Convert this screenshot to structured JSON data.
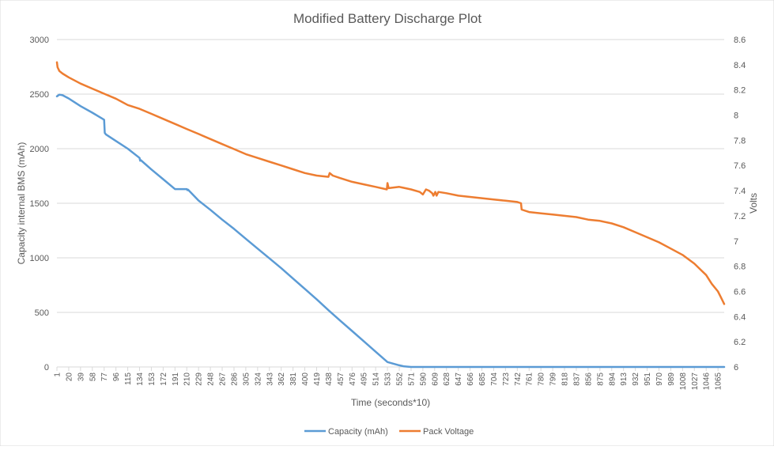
{
  "chart_data": {
    "type": "line",
    "title": "Modified Battery Discharge Plot",
    "xlabel": "Time (seconds*10)",
    "ylabel": "Capacity internal BMS (mAh)",
    "y2label": "Volts",
    "ylim": [
      0,
      3000
    ],
    "yticks": [
      0,
      500,
      1000,
      1500,
      2000,
      2500,
      3000
    ],
    "y2lim": [
      6,
      8.6
    ],
    "y2ticks": [
      6,
      6.2,
      6.4,
      6.6,
      6.8,
      7,
      7.2,
      7.4,
      7.6,
      7.8,
      8,
      8.2,
      8.4,
      8.6
    ],
    "xlim": [
      1,
      1075
    ],
    "xticks": [
      "1",
      "20",
      "39",
      "58",
      "77",
      "96",
      "115",
      "134",
      "153",
      "172",
      "191",
      "210",
      "229",
      "248",
      "267",
      "286",
      "305",
      "324",
      "343",
      "362",
      "381",
      "400",
      "419",
      "438",
      "457",
      "476",
      "495",
      "514",
      "533",
      "552",
      "571",
      "590",
      "609",
      "628",
      "647",
      "666",
      "685",
      "704",
      "723",
      "742",
      "761",
      "780",
      "799",
      "818",
      "837",
      "856",
      "875",
      "894",
      "913",
      "932",
      "951",
      "970",
      "989",
      "1008",
      "1027",
      "1046",
      "1065"
    ],
    "grid": "horizontal",
    "legend_position": "bottom",
    "colors": {
      "capacity": "#5B9BD5",
      "voltage": "#ED7D31",
      "grid": "#D9D9D9",
      "text": "#595959"
    },
    "series": [
      {
        "name": "Capacity (mAh)",
        "axis": "left",
        "x": [
          1,
          5,
          10,
          20,
          39,
          58,
          77,
          78,
          80,
          96,
          115,
          134,
          135,
          136,
          153,
          172,
          191,
          210,
          211,
          212,
          229,
          248,
          267,
          286,
          305,
          324,
          343,
          362,
          381,
          400,
          419,
          438,
          457,
          476,
          495,
          514,
          533,
          552,
          560,
          571,
          590,
          700,
          800,
          900,
          1000,
          1075
        ],
        "y": [
          2480,
          2495,
          2490,
          2460,
          2390,
          2330,
          2265,
          2145,
          2130,
          2070,
          2000,
          1915,
          1890,
          1895,
          1810,
          1720,
          1630,
          1630,
          1620,
          1625,
          1525,
          1440,
          1350,
          1265,
          1175,
          1085,
          995,
          905,
          810,
          715,
          620,
          520,
          425,
          330,
          235,
          140,
          45,
          15,
          5,
          0,
          0,
          0,
          0,
          0,
          0,
          0
        ]
      },
      {
        "name": "Pack Voltage",
        "axis": "right",
        "x": [
          1,
          2,
          5,
          10,
          20,
          39,
          58,
          77,
          96,
          115,
          134,
          153,
          172,
          191,
          210,
          229,
          248,
          267,
          286,
          305,
          324,
          343,
          362,
          381,
          400,
          419,
          438,
          440,
          445,
          457,
          476,
          495,
          514,
          532,
          533,
          535,
          552,
          571,
          585,
          590,
          595,
          600,
          605,
          607,
          610,
          612,
          615,
          628,
          647,
          666,
          685,
          704,
          723,
          742,
          748,
          749,
          761,
          780,
          799,
          818,
          837,
          856,
          875,
          894,
          913,
          932,
          951,
          970,
          989,
          1008,
          1027,
          1046,
          1055,
          1065,
          1070,
          1075
        ],
        "y": [
          8.42,
          8.38,
          8.35,
          8.33,
          8.3,
          8.25,
          8.21,
          8.17,
          8.13,
          8.08,
          8.05,
          8.01,
          7.97,
          7.93,
          7.89,
          7.85,
          7.81,
          7.77,
          7.73,
          7.69,
          7.66,
          7.63,
          7.6,
          7.57,
          7.54,
          7.52,
          7.51,
          7.54,
          7.52,
          7.5,
          7.47,
          7.45,
          7.43,
          7.41,
          7.46,
          7.42,
          7.43,
          7.41,
          7.39,
          7.37,
          7.41,
          7.4,
          7.38,
          7.36,
          7.39,
          7.36,
          7.39,
          7.38,
          7.36,
          7.35,
          7.34,
          7.33,
          7.32,
          7.31,
          7.3,
          7.25,
          7.23,
          7.22,
          7.21,
          7.2,
          7.19,
          7.17,
          7.16,
          7.14,
          7.11,
          7.07,
          7.03,
          6.99,
          6.94,
          6.89,
          6.82,
          6.73,
          6.66,
          6.6,
          6.55,
          6.5
        ]
      }
    ]
  }
}
